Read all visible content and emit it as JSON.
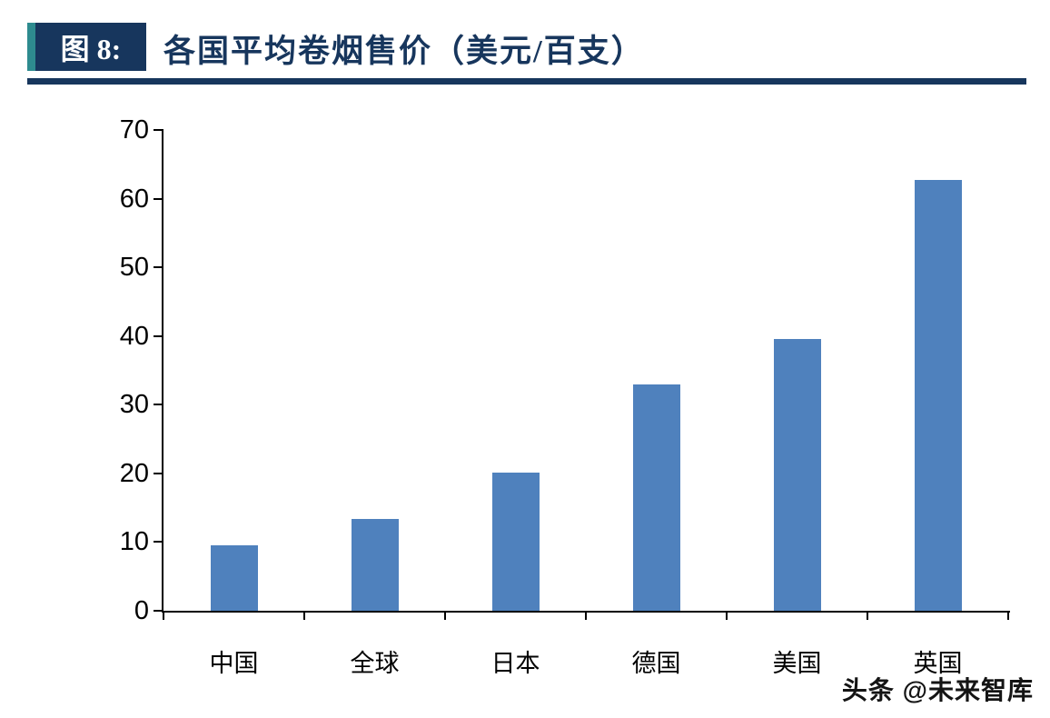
{
  "header": {
    "figure_label": "图 8:",
    "title": "各国平均卷烟售价（美元/百支）",
    "accent_color": "#2E8B8F",
    "navy_color": "#17365D"
  },
  "chart_data": {
    "type": "bar",
    "title": "各国平均卷烟售价（美元/百支）",
    "categories": [
      "中国",
      "全球",
      "日本",
      "德国",
      "美国",
      "英国"
    ],
    "values": [
      9.5,
      13.3,
      20.1,
      33.0,
      39.5,
      62.7
    ],
    "xlabel": "",
    "ylabel": "",
    "ylim": [
      0,
      70
    ],
    "ytick_step": 10,
    "bar_color": "#4F81BD",
    "grid": false,
    "legend": false
  },
  "footer": {
    "watermark": "头条 @未来智库"
  }
}
